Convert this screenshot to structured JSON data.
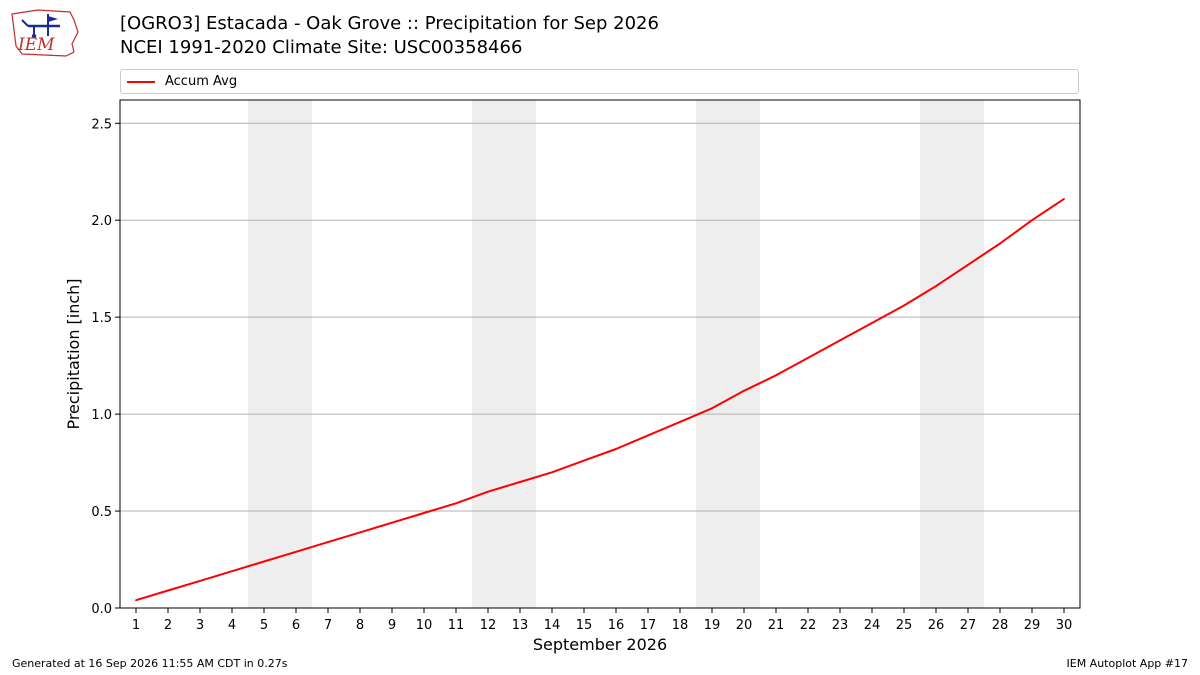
{
  "header": {
    "logo_text": "IEM",
    "title": "[OGRO3] Estacada - Oak Grove :: Precipitation for Sep 2026",
    "subtitle": "NCEI 1991-2020 Climate Site: USC00358466"
  },
  "footer": {
    "left": "Generated at 16 Sep 2026 11:55 AM CDT in 0.27s",
    "right": "IEM Autoplot App #17"
  },
  "chart_data": {
    "type": "line",
    "xlabel": "September 2026",
    "ylabel": "Precipitation [inch]",
    "xlim": [
      0.5,
      30.5
    ],
    "ylim": [
      0,
      2.62
    ],
    "yticks": [
      0.0,
      0.5,
      1.0,
      1.5,
      2.0,
      2.5
    ],
    "ytick_labels": [
      "0.0",
      "0.5",
      "1.0",
      "1.5",
      "2.0",
      "2.5"
    ],
    "xticks": [
      1,
      2,
      3,
      4,
      5,
      6,
      7,
      8,
      9,
      10,
      11,
      12,
      13,
      14,
      15,
      16,
      17,
      18,
      19,
      20,
      21,
      22,
      23,
      24,
      25,
      26,
      27,
      28,
      29,
      30
    ],
    "grid": "horizontal",
    "legend": "top",
    "weekend_shading": [
      [
        4.5,
        6.5
      ],
      [
        11.5,
        13.5
      ],
      [
        18.5,
        20.5
      ],
      [
        25.5,
        27.5
      ]
    ],
    "shade_color": "#eeeeee",
    "series": [
      {
        "name": "Accum Avg",
        "color": "#ff0000",
        "x": [
          1,
          2,
          3,
          4,
          5,
          6,
          7,
          8,
          9,
          10,
          11,
          12,
          13,
          14,
          15,
          16,
          17,
          18,
          19,
          20,
          21,
          22,
          23,
          24,
          25,
          26,
          27,
          28,
          29,
          30
        ],
        "y": [
          0.04,
          0.09,
          0.14,
          0.19,
          0.24,
          0.29,
          0.34,
          0.39,
          0.44,
          0.49,
          0.54,
          0.6,
          0.65,
          0.7,
          0.76,
          0.82,
          0.89,
          0.96,
          1.03,
          1.12,
          1.2,
          1.29,
          1.38,
          1.47,
          1.56,
          1.66,
          1.77,
          1.88,
          2.0,
          2.11
        ]
      }
    ]
  }
}
